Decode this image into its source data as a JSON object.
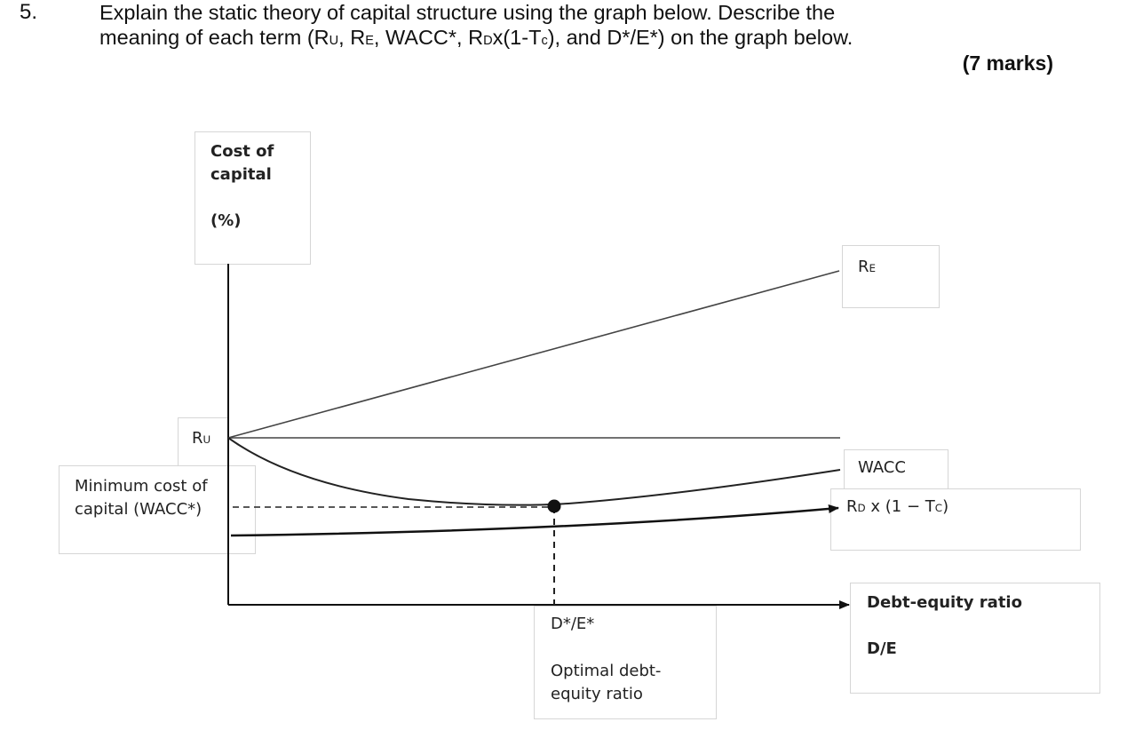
{
  "question": {
    "number": "5.",
    "line1": "Explain the static theory of capital structure using the graph below. Describe the",
    "line2": "meaning of each term (R",
    "marks": "(7 marks)"
  },
  "diagram": {
    "y_axis_title_1": "Cost of",
    "y_axis_title_2": "capital",
    "y_axis_unit": "(%)",
    "re_label": "R",
    "re_sub": "E",
    "ru_label": "R",
    "ru_sub": "U",
    "min_cost_1": "Minimum cost of",
    "min_cost_2": "capital (WACC*)",
    "wacc_label": "WACC",
    "rd_label_pre": "R",
    "rd_sub": "D",
    "rd_label_mid": " x (1 − T",
    "rd_sub2": "C",
    "rd_label_post": ")",
    "x_axis_title": "Debt-equity ratio",
    "x_axis_unit": "D/E",
    "optimal_label": "D*/E*",
    "optimal_desc_1": "Optimal debt-",
    "optimal_desc_2": "equity ratio"
  }
}
